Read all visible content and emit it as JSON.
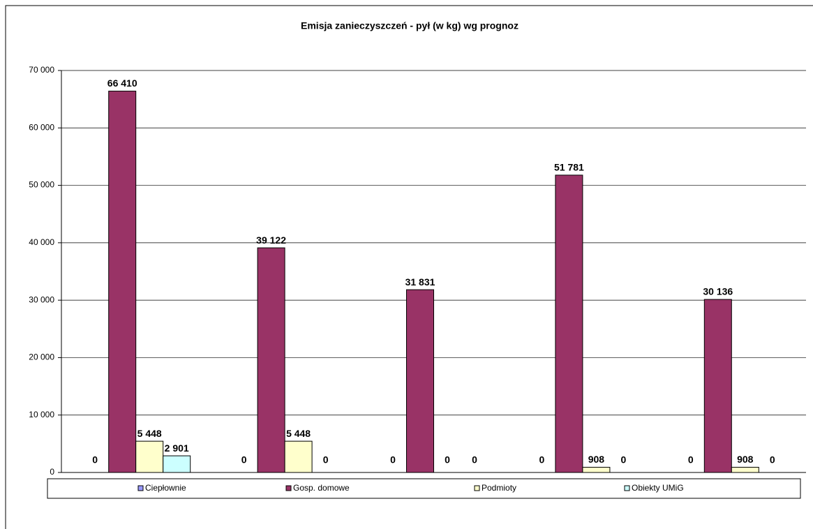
{
  "chart_data": {
    "type": "bar",
    "title": "Emisja zanieczyszczeń -  pył (w kg) wg prognoz",
    "categories": [
      null,
      null,
      null,
      null,
      null
    ],
    "series": [
      {
        "name": "Ciepłownie",
        "color": "#9999ff",
        "values": [
          0,
          0,
          0,
          0,
          0
        ],
        "value_labels": [
          "0",
          "0",
          "0",
          "0",
          "0"
        ]
      },
      {
        "name": "Gosp. domowe",
        "color": "#993366",
        "values": [
          66410,
          39122,
          31831,
          51781,
          30136
        ],
        "value_labels": [
          "66 410",
          "39 122",
          "31 831",
          "51 781",
          "30 136"
        ]
      },
      {
        "name": "Podmioty",
        "color": "#ffffcc",
        "values": [
          5448,
          5448,
          0,
          908,
          908
        ],
        "value_labels": [
          "5 448",
          "5 448",
          "0",
          "908",
          "908"
        ]
      },
      {
        "name": "Obiekty UMiG",
        "color": "#ccffff",
        "values": [
          2901,
          0,
          0,
          0,
          0
        ],
        "value_labels": [
          "2 901",
          "0",
          "0",
          "0",
          "0"
        ]
      }
    ],
    "ylim": [
      0,
      70000
    ],
    "yticks": [
      0,
      {
        "value": 10000,
        "label": "10 000"
      },
      {
        "value": 20000,
        "label": "20 000"
      },
      {
        "value": 30000,
        "label": "30 000"
      },
      {
        "value": 40000,
        "label": "40 000"
      },
      {
        "value": 50000,
        "label": "50 000"
      },
      {
        "value": 60000,
        "label": "60 000"
      },
      {
        "value": 70000,
        "label": "70 000"
      }
    ],
    "grid": true,
    "legend": "bottom"
  }
}
